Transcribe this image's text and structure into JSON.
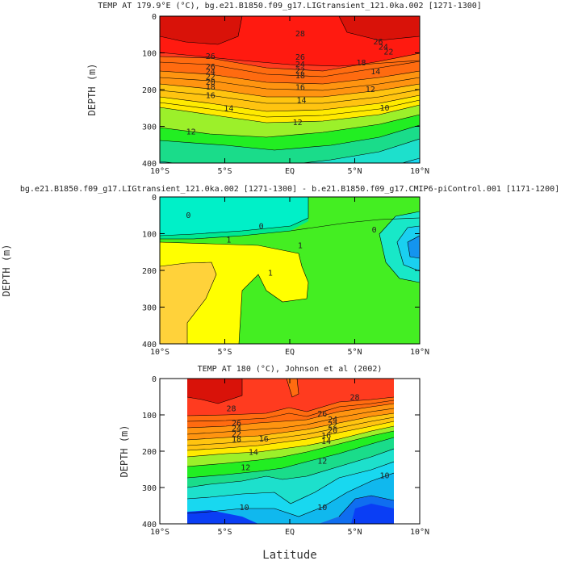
{
  "chart_data": [
    {
      "type": "contour",
      "title": "TEMP AT 179.9°E (°C), bg.e21.B1850.f09_g17.LIGtransient_121.0ka.002 [1271-1300]",
      "ylabel": "DEPTH (m)",
      "xlabel": "",
      "x_ticks": [
        "10°S",
        "5°S",
        "EQ",
        "5°N",
        "10°N"
      ],
      "y_ticks": [
        "0",
        "100",
        "200",
        "300",
        "400"
      ],
      "xlim": [
        -10,
        10
      ],
      "ylim": [
        0,
        400
      ],
      "y_reversed": true,
      "contour_interval": 1,
      "contour_labels": [
        {
          "x": 0.8,
          "y": 48,
          "text": "28"
        },
        {
          "x": 6.8,
          "y": 70,
          "text": "26"
        },
        {
          "x": 7.2,
          "y": 85,
          "text": "24"
        },
        {
          "x": 7.6,
          "y": 98,
          "text": "22"
        },
        {
          "x": -6.1,
          "y": 110,
          "text": "26"
        },
        {
          "x": 0.8,
          "y": 112,
          "text": "26"
        },
        {
          "x": 0.8,
          "y": 132,
          "text": "24"
        },
        {
          "x": -6.1,
          "y": 138,
          "text": "26"
        },
        {
          "x": 0.8,
          "y": 148,
          "text": "22"
        },
        {
          "x": -6.1,
          "y": 152,
          "text": "24"
        },
        {
          "x": -6.1,
          "y": 166,
          "text": "22"
        },
        {
          "x": 0.8,
          "y": 163,
          "text": "18"
        },
        {
          "x": 5.5,
          "y": 128,
          "text": "18"
        },
        {
          "x": -6.1,
          "y": 180,
          "text": "20"
        },
        {
          "x": 6.6,
          "y": 152,
          "text": "14"
        },
        {
          "x": -6.1,
          "y": 193,
          "text": "18"
        },
        {
          "x": 0.8,
          "y": 194,
          "text": "16"
        },
        {
          "x": -6.1,
          "y": 217,
          "text": "16"
        },
        {
          "x": 0.9,
          "y": 230,
          "text": "14"
        },
        {
          "x": 6.2,
          "y": 200,
          "text": "12"
        },
        {
          "x": -4.7,
          "y": 252,
          "text": "14"
        },
        {
          "x": 0.6,
          "y": 290,
          "text": "12"
        },
        {
          "x": -7.6,
          "y": 315,
          "text": "12"
        },
        {
          "x": 7.3,
          "y": 250,
          "text": "10"
        }
      ]
    },
    {
      "type": "contour",
      "title": "bg.e21.B1850.f09_g17.LIGtransient_121.0ka.002 [1271-1300] - b.e21.B1850.f09_g17.CMIP6-piControl.001 [1171-1200]",
      "ylabel": "DEPTH (m)",
      "xlabel": "",
      "x_ticks": [
        "10°S",
        "5°S",
        "EQ",
        "5°N",
        "10°N"
      ],
      "y_ticks": [
        "0",
        "100",
        "200",
        "300",
        "400"
      ],
      "xlim": [
        -10,
        10
      ],
      "ylim": [
        0,
        400
      ],
      "y_reversed": true,
      "contour_interval": 1,
      "contour_labels": [
        {
          "x": -7.8,
          "y": 50,
          "text": "0"
        },
        {
          "x": -2.2,
          "y": 80,
          "text": "0"
        },
        {
          "x": 6.5,
          "y": 90,
          "text": "0"
        },
        {
          "x": -4.7,
          "y": 118,
          "text": "1"
        },
        {
          "x": 0.8,
          "y": 133,
          "text": "1"
        },
        {
          "x": -1.5,
          "y": 208,
          "text": "1"
        }
      ]
    },
    {
      "type": "contour",
      "title": "TEMP AT 180 (°C), Johnson et al (2002)",
      "ylabel": "DEPTH (m)",
      "xlabel": "Latitude",
      "x_ticks": [
        "10°S",
        "5°S",
        "EQ",
        "5°N",
        "10°N"
      ],
      "y_ticks": [
        "0",
        "100",
        "200",
        "300",
        "400"
      ],
      "xlim": [
        -10,
        10
      ],
      "ylim": [
        0,
        400
      ],
      "data_xrange": [
        -8,
        8
      ],
      "y_reversed": true,
      "contour_interval": 1,
      "contour_labels": [
        {
          "x": -4.5,
          "y": 83,
          "text": "28"
        },
        {
          "x": 5.0,
          "y": 52,
          "text": "28"
        },
        {
          "x": 2.5,
          "y": 98,
          "text": "26"
        },
        {
          "x": 3.3,
          "y": 113,
          "text": "24"
        },
        {
          "x": -4.1,
          "y": 123,
          "text": "26"
        },
        {
          "x": 3.3,
          "y": 128,
          "text": "22"
        },
        {
          "x": -4.1,
          "y": 138,
          "text": "24"
        },
        {
          "x": 3.3,
          "y": 143,
          "text": "20"
        },
        {
          "x": -4.1,
          "y": 153,
          "text": "22"
        },
        {
          "x": -4.1,
          "y": 168,
          "text": "18"
        },
        {
          "x": 2.8,
          "y": 158,
          "text": "16"
        },
        {
          "x": -2.0,
          "y": 167,
          "text": "16"
        },
        {
          "x": 2.8,
          "y": 173,
          "text": "14"
        },
        {
          "x": -2.8,
          "y": 203,
          "text": "14"
        },
        {
          "x": 2.5,
          "y": 228,
          "text": "12"
        },
        {
          "x": -3.4,
          "y": 245,
          "text": "12"
        },
        {
          "x": 7.3,
          "y": 268,
          "text": "10"
        },
        {
          "x": -3.5,
          "y": 355,
          "text": "10"
        },
        {
          "x": 2.5,
          "y": 355,
          "text": "10"
        }
      ]
    }
  ]
}
